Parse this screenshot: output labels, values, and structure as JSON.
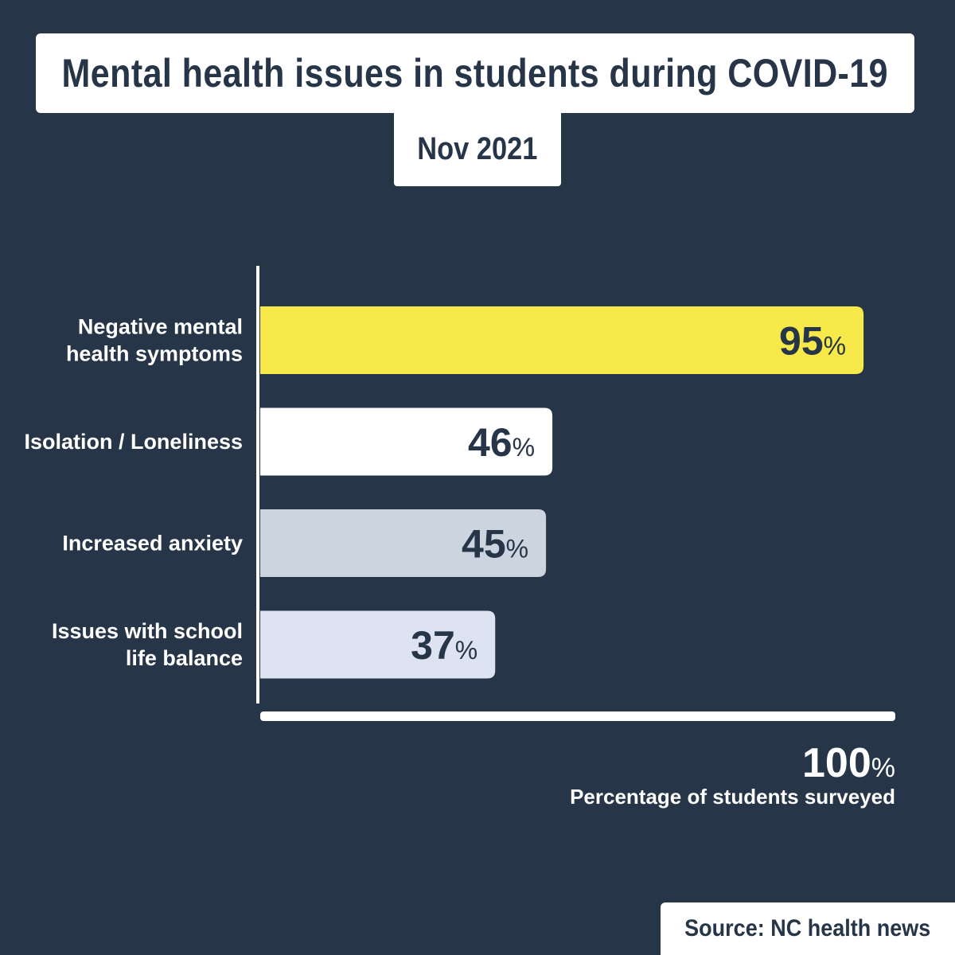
{
  "title": "Mental health issues in students during COVID-19",
  "subtitle": "Nov 2021",
  "source": "Source: NC health news",
  "chart_data": {
    "type": "bar",
    "orientation": "horizontal",
    "categories": [
      [
        "Negative mental",
        "health symptoms"
      ],
      [
        "Isolation / Loneliness"
      ],
      [
        "Increased anxiety"
      ],
      [
        "Issues with school",
        "life balance"
      ]
    ],
    "values": [
      95,
      46,
      45,
      37
    ],
    "value_suffix": "%",
    "bar_colors": [
      "#f7e94a",
      "#ffffff",
      "#ccd4df",
      "#dde3f0"
    ],
    "xlim": [
      0,
      100
    ],
    "axis_max_label": "100",
    "axis_max_suffix": "%",
    "xlabel": "Percentage of students surveyed"
  },
  "colors": {
    "background": "#263547",
    "text_dark": "#263547",
    "text_light": "#ffffff"
  }
}
